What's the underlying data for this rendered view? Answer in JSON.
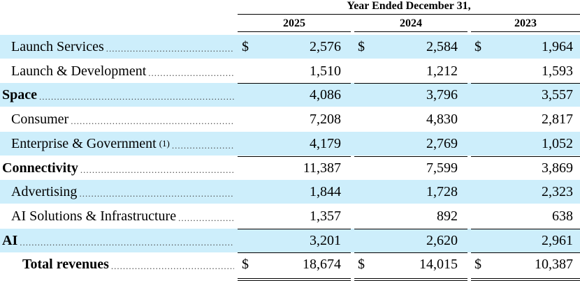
{
  "header": {
    "period": "Year Ended December 31,",
    "years": [
      "2025",
      "2024",
      "2023"
    ]
  },
  "currency_symbol": "$",
  "rows": [
    {
      "label": "Launch Services",
      "note": "",
      "values": [
        "2,576",
        "2,584",
        "1,964"
      ],
      "dollar": true,
      "bold": false,
      "indent": true,
      "shaded": true
    },
    {
      "label": "Launch & Development",
      "note": "",
      "values": [
        "1,510",
        "1,212",
        "1,593"
      ],
      "dollar": false,
      "bold": false,
      "indent": true,
      "shaded": false
    },
    {
      "label": "Space",
      "note": "",
      "values": [
        "4,086",
        "3,796",
        "3,557"
      ],
      "dollar": false,
      "bold": true,
      "indent": false,
      "shaded": true
    },
    {
      "label": "Consumer",
      "note": "",
      "values": [
        "7,208",
        "4,830",
        "2,817"
      ],
      "dollar": false,
      "bold": false,
      "indent": true,
      "shaded": false
    },
    {
      "label": "Enterprise & Government",
      "note": "(1)",
      "values": [
        "4,179",
        "2,769",
        "1,052"
      ],
      "dollar": false,
      "bold": false,
      "indent": true,
      "shaded": true
    },
    {
      "label": "Connectivity",
      "note": "",
      "values": [
        "11,387",
        "7,599",
        "3,869"
      ],
      "dollar": false,
      "bold": true,
      "indent": false,
      "shaded": false
    },
    {
      "label": "Advertising",
      "note": "",
      "values": [
        "1,844",
        "1,728",
        "2,323"
      ],
      "dollar": false,
      "bold": false,
      "indent": true,
      "shaded": true
    },
    {
      "label": "AI Solutions & Infrastructure",
      "note": "",
      "values": [
        "1,357",
        "892",
        "638"
      ],
      "dollar": false,
      "bold": false,
      "indent": true,
      "shaded": false
    },
    {
      "label": "AI",
      "note": "",
      "values": [
        "3,201",
        "2,620",
        "2,961"
      ],
      "dollar": false,
      "bold": true,
      "indent": false,
      "shaded": true
    },
    {
      "label": "Total revenues",
      "note": "",
      "values": [
        "18,674",
        "14,015",
        "10,387"
      ],
      "dollar": true,
      "bold": true,
      "indent": false,
      "shaded": false,
      "total": true
    }
  ],
  "colors": {
    "shade": "#cdeefb"
  }
}
